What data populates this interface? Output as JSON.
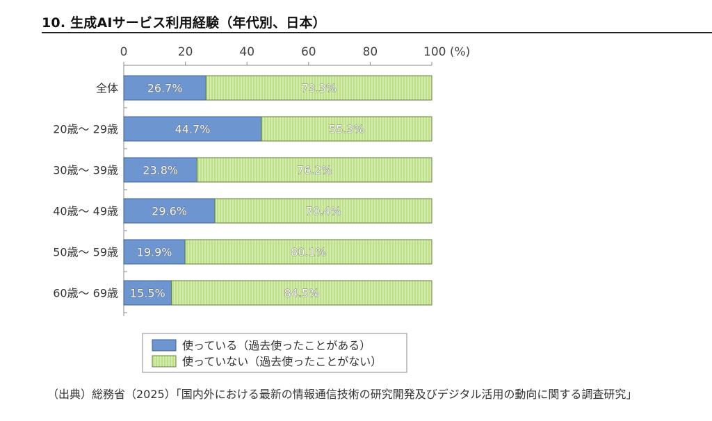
{
  "heading": "10. 生成AIサービス利用経験（年代別、日本）",
  "source": "（出典）総務省（2025）「国内外における最新の情報通信技術の研究開発及びデジタル活用の動向に関する調査研究」",
  "chart_data": {
    "type": "bar",
    "orientation": "horizontal",
    "stacked": true,
    "categories": [
      "全体",
      "20歳〜 29歳",
      "30歳〜 39歳",
      "40歳〜 49歳",
      "50歳〜 59歳",
      "60歳〜 69歳"
    ],
    "series": [
      {
        "name": "使っている（過去使ったことがある）",
        "color": "#6d95d0",
        "values": [
          26.7,
          44.7,
          23.8,
          29.6,
          19.9,
          15.5
        ],
        "labels": [
          "26.7%",
          "44.7%",
          "23.8%",
          "29.6%",
          "19.9%",
          "15.5%"
        ]
      },
      {
        "name": "使っていない（過去使ったことがない）",
        "color": "#c9e59a",
        "values": [
          73.3,
          55.3,
          76.2,
          70.4,
          80.1,
          84.5
        ],
        "labels": [
          "73.3%",
          "55.3%",
          "76.2%",
          "70.4%",
          "80.1%",
          "84.5%"
        ]
      }
    ],
    "xlim": [
      0,
      100
    ],
    "xticks": [
      0,
      20,
      40,
      60,
      80,
      100
    ],
    "xtick_labels": [
      "0",
      "20",
      "40",
      "60",
      "80",
      "100 (%)"
    ],
    "axis_position": "top",
    "legend_position": "bottom-center",
    "grid": false
  }
}
